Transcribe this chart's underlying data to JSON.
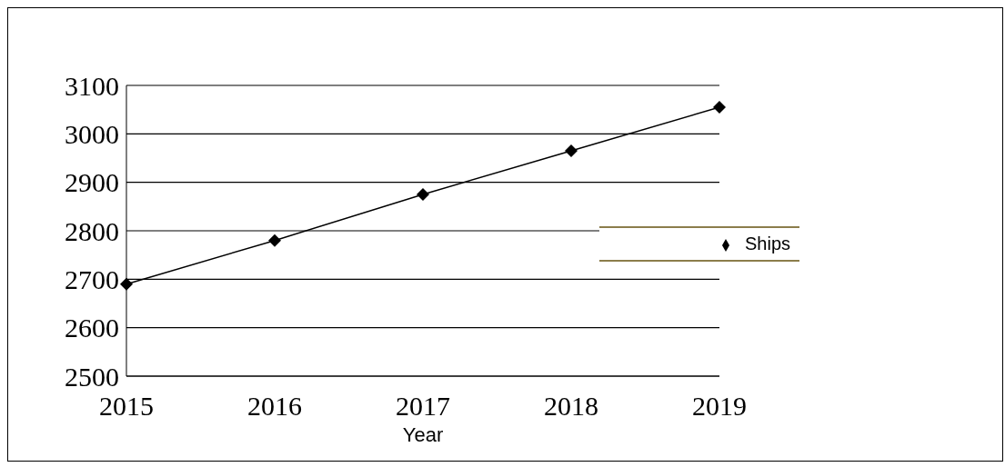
{
  "chart_data": {
    "type": "line",
    "xlabel": "Year",
    "categories": [
      "2015",
      "2016",
      "2017",
      "2018",
      "2019"
    ],
    "series": [
      {
        "name": "Ships",
        "color": "#000000",
        "values": [
          2690,
          2780,
          2875,
          2965,
          3055
        ]
      }
    ],
    "ylim": [
      2500,
      3100
    ],
    "yticks": [
      2500,
      2600,
      2700,
      2800,
      2900,
      3000,
      3100
    ],
    "grid": "y",
    "legend": "right",
    "marker": "diamond",
    "line_style": "solid"
  }
}
